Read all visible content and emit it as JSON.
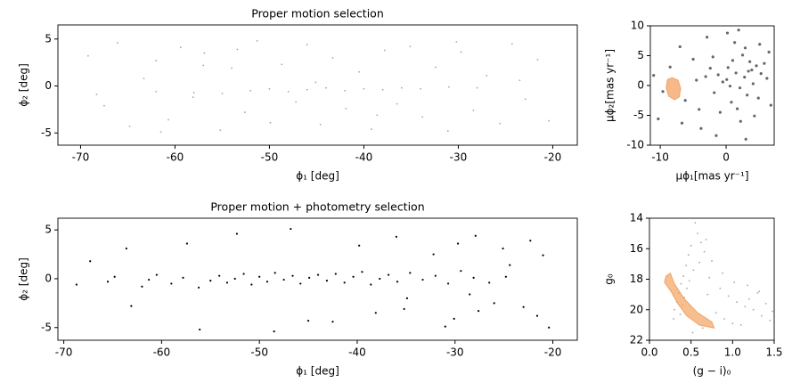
{
  "chart_data": [
    {
      "type": "scatter",
      "title": "Proper motion selection",
      "xlabel": "ϕ₁ [deg]",
      "ylabel": "ϕ₂ [deg]",
      "xlim": [
        -72.4,
        -17.4
      ],
      "ylim": [
        -6.3,
        6.5
      ],
      "xticks": [
        -70,
        -60,
        -50,
        -40,
        -30,
        -20
      ],
      "yticks": [
        -5,
        0,
        5
      ],
      "series": [
        {
          "color": "#000000",
          "opacity": 0.35,
          "size": 0.9,
          "x": [
            -69.2,
            -67.5,
            -66.1,
            -64.8,
            -63.3,
            -62.0,
            -60.7,
            -59.4,
            -58.1,
            -56.9,
            -55.2,
            -54.0,
            -52.6,
            -51.3,
            -49.9,
            -48.7,
            -47.2,
            -46.0,
            -44.6,
            -43.3,
            -41.9,
            -40.5,
            -39.2,
            -37.8,
            -36.5,
            -35.1,
            -33.8,
            -32.4,
            -31.1,
            -29.7,
            -28.4,
            -27.0,
            -25.6,
            -24.3,
            -22.9,
            -21.6,
            -20.4,
            -68.3,
            -61.5,
            -53.4,
            -45.1,
            -38.6,
            -30.2,
            -23.5,
            -57.0,
            -62,
            -58,
            -55,
            -52,
            -50,
            -48,
            -46,
            -44,
            -42,
            -40,
            -38,
            -36,
            -34,
            -31,
            -28
          ],
          "values": [
            3.2,
            -2.1,
            4.6,
            -4.3,
            0.8,
            2.7,
            -3.6,
            4.1,
            -1.2,
            3.5,
            -4.7,
            1.9,
            -2.8,
            4.8,
            -3.9,
            2.3,
            -1.7,
            4.4,
            -4.1,
            3.0,
            -2.4,
            1.5,
            -4.6,
            3.8,
            -1.9,
            4.2,
            -3.3,
            2.0,
            -4.8,
            3.6,
            -2.6,
            1.1,
            -4.0,
            4.5,
            -1.4,
            2.8,
            -3.7,
            -0.9,
            -4.9,
            3.9,
            0.4,
            -3.1,
            4.7,
            0.6,
            2.2,
            -0.6,
            -0.7,
            -0.8,
            -0.5,
            -0.3,
            -0.6,
            -0.4,
            -0.2,
            -0.5,
            -0.3,
            -0.4,
            -0.2,
            -0.3,
            -0.1,
            -0.2
          ]
        }
      ]
    },
    {
      "type": "scatter",
      "xlabel": "μϕ₁[mas yr⁻¹]",
      "ylabel": "μϕ₂[mas yr⁻¹]",
      "xlim": [
        -11.5,
        7.3
      ],
      "ylim": [
        -10,
        10
      ],
      "xticks": [
        -10,
        0
      ],
      "yticks": [
        -10,
        -5,
        0,
        5,
        10
      ],
      "series": [
        {
          "color": "#000000",
          "opacity": 0.6,
          "size": 1.6,
          "x": [
            1.5,
            2.8,
            0.3,
            3.9,
            -1.2,
            4.6,
            2.1,
            -0.5,
            5.3,
            1.0,
            3.2,
            -2.4,
            0.8,
            2.5,
            4.1,
            -1.8,
            6.2,
            1.7,
            -3.1,
            3.6,
            0.1,
            2.9,
            5.8,
            -0.9,
            1.3,
            4.9,
            -2.0,
            2.2,
            3.4,
            0.6,
            -4.5,
            -6.2,
            -5.0,
            -8.5,
            -10.3,
            -3.8,
            6.8,
            -7.0,
            -2.9,
            5.1,
            -9.6,
            -1.5,
            4.3,
            0.2,
            -6.7,
            3.0,
            -11.0,
            1.9,
            -4.1,
            6.5
          ],
          "values": [
            2.1,
            1.4,
            3.0,
            2.6,
            1.8,
            3.3,
            -0.4,
            0.6,
            2.0,
            4.2,
            -1.6,
            2.9,
            -2.8,
            5.1,
            0.3,
            -1.2,
            1.2,
            -3.9,
            1.5,
            4.0,
            1.0,
            6.3,
            3.7,
            -4.5,
            7.2,
            -2.1,
            4.8,
            -6.0,
            2.4,
            -0.1,
            0.9,
            -2.5,
            4.4,
            3.1,
            -5.6,
            -7.2,
            -3.3,
            6.5,
            8.1,
            6.9,
            -1.0,
            -8.4,
            -5.1,
            8.8,
            -6.3,
            -9.0,
            1.7,
            9.3,
            -4.0,
            5.6
          ]
        },
        {
          "kind": "polygon",
          "color": "#f4a261",
          "opacity": 0.75,
          "x": [
            -8.9,
            -8.2,
            -7.3,
            -6.9,
            -7.1,
            -7.8,
            -8.7,
            -9.1
          ],
          "values": [
            1.0,
            1.3,
            0.9,
            -0.5,
            -1.9,
            -2.4,
            -1.8,
            -0.4
          ]
        }
      ]
    },
    {
      "type": "scatter",
      "title": "Proper motion + photometry selection",
      "xlabel": "ϕ₁ [deg]",
      "ylabel": "ϕ₂ [deg]",
      "xlim": [
        -70.6,
        -17.5
      ],
      "ylim": [
        -6.3,
        6.2
      ],
      "xticks": [
        -70,
        -60,
        -50,
        -40,
        -30,
        -20
      ],
      "yticks": [
        -5,
        0,
        5
      ],
      "series": [
        {
          "color": "#000000",
          "opacity": 1,
          "size": 1.1,
          "x": [
            -68.7,
            -65.5,
            -64.8,
            -62.0,
            -61.3,
            -60.5,
            -59.0,
            -57.8,
            -56.2,
            -55.0,
            -54.1,
            -53.3,
            -52.5,
            -51.6,
            -50.8,
            -50.0,
            -49.2,
            -48.4,
            -47.5,
            -46.6,
            -45.8,
            -44.9,
            -44.0,
            -43.1,
            -42.2,
            -41.3,
            -40.4,
            -39.5,
            -38.6,
            -37.7,
            -36.8,
            -35.9,
            -34.6,
            -33.3,
            -32.0,
            -30.7,
            -29.4,
            -28.1,
            -26.5,
            -24.8,
            -67.3,
            -63.6,
            -63.1,
            -57.4,
            -56.1,
            -52.3,
            -46.8,
            -45.0,
            -42.5,
            -39.8,
            -38.1,
            -36.0,
            -34.9,
            -32.2,
            -31.0,
            -29.7,
            -28.5,
            -27.9,
            -27.6,
            -26.0,
            -25.1,
            -24.4,
            -23.0,
            -22.3,
            -21.6,
            -21.0,
            -20.4,
            -48.5,
            -35.2,
            -30.1
          ],
          "values": [
            -0.6,
            -0.3,
            0.2,
            -0.8,
            -0.1,
            0.4,
            -0.5,
            0.1,
            -0.9,
            -0.2,
            0.3,
            -0.4,
            0.0,
            0.5,
            -0.6,
            0.2,
            -0.3,
            0.6,
            -0.1,
            0.3,
            -0.5,
            0.1,
            0.4,
            -0.2,
            0.5,
            -0.4,
            0.2,
            0.7,
            -0.6,
            0.0,
            0.4,
            -0.3,
            0.6,
            -0.1,
            0.3,
            -0.5,
            0.8,
            0.1,
            -0.4,
            0.2,
            1.8,
            3.1,
            -2.8,
            3.6,
            -5.2,
            4.6,
            5.1,
            -4.3,
            -4.4,
            3.4,
            -3.5,
            4.3,
            -2.0,
            2.5,
            -4.9,
            3.6,
            -1.6,
            4.4,
            -3.3,
            -2.5,
            3.1,
            1.4,
            -2.9,
            3.9,
            -3.8,
            2.4,
            -5.0,
            -5.4,
            -3.1,
            -4.1
          ]
        }
      ]
    },
    {
      "type": "scatter",
      "xlabel": "(g − i)₀",
      "ylabel": "g₀",
      "xlim": [
        0,
        1.5
      ],
      "ylim": [
        22,
        14
      ],
      "xticks": [
        {
          "value": 0,
          "label": "0.0"
        },
        0.5,
        {
          "value": 1,
          "label": "1.0"
        },
        1.5
      ],
      "yticks": [
        14,
        16,
        18,
        20,
        22
      ],
      "series": [
        {
          "color": "#000000",
          "opacity": 0.35,
          "size": 0.9,
          "x": [
            0.55,
            0.58,
            0.62,
            0.5,
            0.66,
            0.47,
            0.6,
            0.44,
            0.53,
            0.41,
            0.48,
            0.38,
            0.45,
            0.35,
            0.42,
            0.33,
            0.4,
            0.3,
            0.37,
            0.29,
            0.72,
            0.85,
            0.95,
            1.05,
            1.15,
            1.25,
            1.35,
            1.45,
            0.8,
            0.9,
            1.0,
            1.1,
            1.2,
            1.3,
            1.4,
            0.7,
            0.68,
            0.75,
            0.88,
            1.02,
            1.18,
            1.32,
            1.48,
            0.52,
            0.64
          ],
          "values": [
            14.3,
            15.0,
            15.6,
            15.8,
            16.2,
            16.4,
            16.9,
            17.1,
            17.4,
            17.8,
            18.1,
            18.3,
            18.6,
            18.9,
            19.2,
            19.5,
            19.7,
            20.0,
            20.3,
            20.6,
            17.9,
            18.6,
            19.1,
            19.5,
            19.8,
            20.0,
            20.4,
            20.7,
            20.2,
            20.6,
            20.9,
            21.0,
            19.3,
            18.9,
            19.6,
            19.0,
            15.4,
            16.8,
            17.6,
            18.2,
            18.4,
            18.8,
            20.1,
            21.5,
            21.2
          ]
        },
        {
          "kind": "polygon",
          "color": "#f4a261",
          "opacity": 0.7,
          "x": [
            0.2,
            0.25,
            0.3,
            0.42,
            0.58,
            0.75,
            0.78,
            0.6,
            0.45,
            0.34,
            0.26,
            0.18
          ],
          "values": [
            17.8,
            17.6,
            18.3,
            19.3,
            20.2,
            20.8,
            21.2,
            21.0,
            20.4,
            19.6,
            18.8,
            18.2
          ]
        }
      ]
    }
  ]
}
